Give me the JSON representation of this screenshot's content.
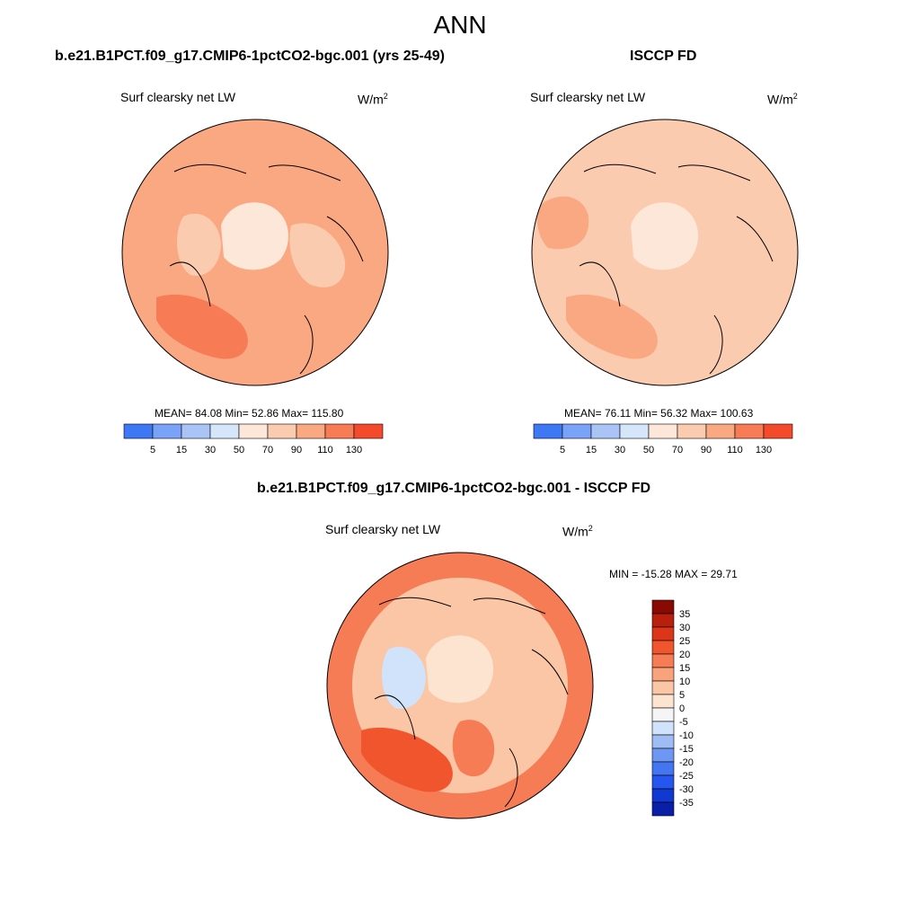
{
  "page": {
    "title": "ANN"
  },
  "palettes": {
    "abs": [
      "#0a0a7a",
      "#1232b8",
      "#2151e8",
      "#3e78f5",
      "#7aa2f7",
      "#a9c4f5",
      "#d6e6fa",
      "#fde7d8",
      "#fbcbb0",
      "#f9a882",
      "#f77b55",
      "#f24a2a",
      "#d8321a",
      "#b41e0d",
      "#840a02"
    ],
    "diff": [
      "#020280",
      "#0a1fa8",
      "#1138d0",
      "#2556f0",
      "#4576f2",
      "#6e97f3",
      "#9fbcf5",
      "#d1e2fb",
      "#f5f5f5",
      "#fde4d1",
      "#fbc6a5",
      "#f9a37d",
      "#f57c55",
      "#f1552e",
      "#dc3519",
      "#b81f0c",
      "#880a02"
    ]
  },
  "chart_data": [
    {
      "type": "heatmap",
      "projection": "north-polar-stereographic",
      "panel_title": "b.e21.B1PCT.f09_g17.CMIP6-1pctCO2-bgc.001 (yrs 25-49)",
      "subtitle": "Surf clearsky net LW",
      "units": "W/m",
      "units_sup": "2",
      "stats": {
        "mean": "84.08",
        "min": "52.86",
        "max": "115.80"
      },
      "stats_text": "MEAN=  84.08  Min=  52.86  Max= 115.80",
      "levels": [
        5,
        15,
        30,
        50,
        70,
        90,
        110,
        130
      ],
      "colorbar_labels": [
        "5",
        "15",
        "30",
        "50",
        "70",
        "90",
        "110",
        "130"
      ],
      "colorbar_orientation": "horizontal",
      "regions": [
        {
          "name": "background",
          "value": 95
        },
        {
          "name": "outer-ring",
          "value": 102
        },
        {
          "name": "central-arctic",
          "value": 60
        },
        {
          "name": "canadian-archipelago",
          "value": 75
        },
        {
          "name": "north-atlantic",
          "value": 110
        },
        {
          "name": "eastern-siberia",
          "value": 85
        }
      ]
    },
    {
      "type": "heatmap",
      "projection": "north-polar-stereographic",
      "panel_title": "ISCCP FD",
      "subtitle": "Surf clearsky net LW",
      "units": "W/m",
      "units_sup": "2",
      "stats": {
        "mean": "76.11",
        "min": "56.32",
        "max": "100.63"
      },
      "stats_text": "MEAN=  76.11  Min=  56.32  Max= 100.63",
      "levels": [
        5,
        15,
        30,
        50,
        70,
        90,
        110,
        130
      ],
      "colorbar_labels": [
        "5",
        "15",
        "30",
        "50",
        "70",
        "90",
        "110",
        "130"
      ],
      "colorbar_orientation": "horizontal",
      "regions": [
        {
          "name": "background",
          "value": 80
        },
        {
          "name": "eurasia-interior",
          "value": 88
        },
        {
          "name": "central-arctic",
          "value": 62
        },
        {
          "name": "north-atlantic",
          "value": 92
        },
        {
          "name": "western-edge",
          "value": 95
        }
      ]
    },
    {
      "type": "heatmap",
      "projection": "north-polar-stereographic",
      "panel_title": "b.e21.B1PCT.f09_g17.CMIP6-1pctCO2-bgc.001 - ISCCP FD",
      "subtitle": "Surf clearsky net LW",
      "units": "W/m",
      "units_sup": "2",
      "stats": {
        "min": "-15.28",
        "max": "29.71"
      },
      "stats_text": "MIN = -15.28 MAX =  29.71",
      "levels": [
        -35,
        -30,
        -25,
        -20,
        -15,
        -10,
        -5,
        0,
        5,
        10,
        15,
        20,
        25,
        30,
        35
      ],
      "colorbar_labels": [
        "35",
        "30",
        "25",
        "20",
        "15",
        "10",
        "5",
        "0",
        "-5",
        "-10",
        "-15",
        "-20",
        "-25",
        "-30",
        "-35"
      ],
      "colorbar_orientation": "vertical",
      "regions": [
        {
          "name": "background",
          "value": 9
        },
        {
          "name": "outer-ring",
          "value": 16
        },
        {
          "name": "central-arctic",
          "value": 2
        },
        {
          "name": "canadian-archipelago",
          "value": -7
        },
        {
          "name": "north-atlantic",
          "value": 24
        },
        {
          "name": "barents-sea",
          "value": 18
        }
      ]
    }
  ]
}
